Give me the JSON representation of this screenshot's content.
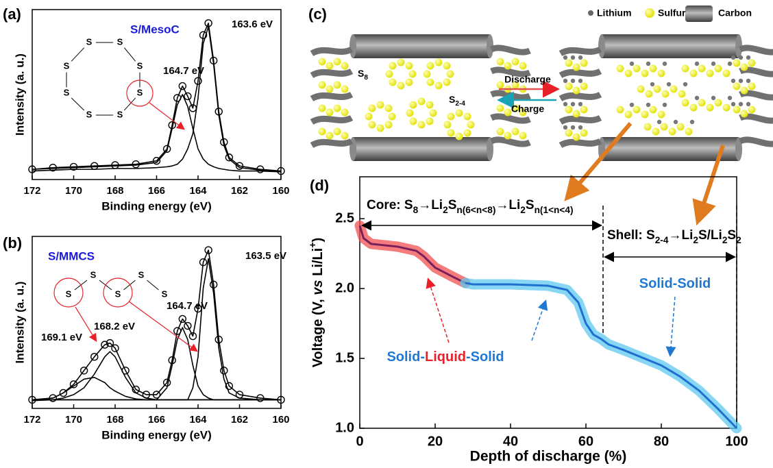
{
  "chart_data": [
    {
      "type": "spectrum",
      "panel": "(a)",
      "annotations": [
        {
          "text": "S/MesoC",
          "color": "#1a1adb"
        },
        {
          "text": "163.6 eV",
          "color": "#000000"
        },
        {
          "text": "164.7 eV",
          "color": "#000000"
        }
      ],
      "molecule_atoms": [
        "S",
        "S",
        "S",
        "S",
        "S",
        "S",
        "S",
        "S"
      ],
      "xlabel": "Binding energy (eV)",
      "ylabel": "Intensity (a. u.)",
      "xlim": [
        172,
        160
      ],
      "xticks": [
        172,
        170,
        168,
        166,
        164,
        162,
        160
      ],
      "ylim": [
        0,
        100
      ],
      "x": [
        172,
        171,
        170,
        169,
        168,
        167,
        166,
        165.5,
        165.25,
        165,
        164.75,
        164.5,
        164.25,
        164,
        163.75,
        163.5,
        163.25,
        163,
        162.75,
        162.5,
        162,
        161,
        160
      ],
      "series": [
        {
          "values": [
            6,
            7,
            7.5,
            8,
            8.5,
            9,
            11,
            18,
            32,
            48,
            55,
            49,
            42,
            58,
            85,
            92,
            70,
            40,
            22,
            13,
            8,
            6,
            5
          ],
          "marker": "circle",
          "line": true,
          "color": "#000000"
        },
        {
          "values": [
            6,
            6.5,
            7,
            7.5,
            8,
            8.5,
            10,
            17,
            30,
            44,
            50,
            43,
            30,
            18,
            12,
            9,
            7.5,
            6.5,
            6,
            5.5,
            5,
            5,
            4.5
          ],
          "line": true,
          "color": "#000000"
        },
        {
          "values": [
            5,
            5.5,
            6,
            6,
            6.5,
            6.5,
            7,
            7.5,
            8,
            9,
            12,
            18,
            27,
            48,
            80,
            90,
            68,
            38,
            20,
            12,
            7,
            5.5,
            4.5
          ],
          "line": true,
          "color": "#000000"
        }
      ]
    },
    {
      "type": "spectrum",
      "panel": "(b)",
      "annotations": [
        {
          "text": "S/MMCS",
          "color": "#1a1adb"
        },
        {
          "text": "169.1 eV",
          "color": "#000000"
        },
        {
          "text": "168.2 eV",
          "color": "#000000"
        },
        {
          "text": "164.7 eV",
          "color": "#000000"
        },
        {
          "text": "163.5 eV",
          "color": "#000000"
        }
      ],
      "molecule_atoms": [
        "S",
        "S",
        "S",
        "S",
        "S"
      ],
      "xlabel": "Binding energy (eV)",
      "ylabel": "Intensity (a. u.)",
      "xlim": [
        172,
        160
      ],
      "xticks": [
        172,
        170,
        168,
        166,
        164,
        162,
        160
      ],
      "ylim": [
        0,
        100
      ],
      "x": [
        172,
        171,
        170.5,
        170,
        169.5,
        169,
        168.5,
        168.25,
        168,
        167.5,
        167,
        166.5,
        166,
        165.5,
        165.25,
        165,
        164.75,
        164.5,
        164.25,
        164,
        163.75,
        163.5,
        163.25,
        163,
        162.75,
        162.5,
        162,
        161,
        160
      ],
      "series": [
        {
          "values": [
            5,
            6,
            9,
            14,
            22,
            30,
            37,
            38,
            35,
            22,
            11,
            8,
            8,
            15,
            28,
            45,
            52,
            48,
            42,
            58,
            85,
            92,
            72,
            40,
            22,
            13,
            8,
            6,
            5
          ],
          "marker": "circle",
          "line": true,
          "color": "#000000"
        },
        {
          "values": [
            5,
            6,
            9,
            13,
            17,
            18,
            15,
            12,
            10,
            7,
            5.5,
            5,
            5,
            5,
            5,
            5,
            5,
            5,
            5,
            5,
            5,
            5,
            5,
            5,
            5,
            5,
            5,
            5,
            5
          ],
          "line": true,
          "color": "#000000"
        },
        {
          "values": [
            4.5,
            5,
            6,
            8,
            12,
            20,
            30,
            33,
            30,
            18,
            9,
            6,
            5,
            5,
            5,
            5,
            5,
            5,
            5,
            5,
            5,
            5,
            5,
            5,
            5,
            5,
            5,
            5,
            5
          ],
          "line": true,
          "color": "#000000"
        },
        {
          "values": [
            5,
            5,
            5,
            5,
            5,
            5,
            5,
            5,
            5,
            5,
            5,
            5,
            5,
            12,
            25,
            40,
            47,
            40,
            25,
            13,
            8,
            6,
            5,
            5,
            5,
            5,
            5,
            5,
            5
          ],
          "line": true,
          "color": "#000000"
        },
        {
          "values": [
            5,
            5,
            5,
            5,
            5,
            5,
            5,
            5,
            5,
            5,
            5,
            5,
            5,
            5,
            5,
            5,
            5,
            5,
            12,
            30,
            70,
            87,
            67,
            35,
            17,
            9,
            6,
            5,
            5
          ],
          "line": true,
          "color": "#000000"
        }
      ]
    },
    {
      "type": "line",
      "panel": "(d)",
      "xlabel": "Depth of discharge (%)",
      "ylabel": {
        "parts": [
          {
            "t": "Voltage (V, "
          },
          {
            "t": "vs",
            "italic": true
          },
          {
            "t": " Li/Li"
          },
          {
            "t": "+",
            "sup": true
          },
          {
            "t": ")"
          }
        ]
      },
      "xlim": [
        0,
        100
      ],
      "xticks": [
        0,
        20,
        40,
        60,
        80,
        100
      ],
      "ylim": [
        1.0,
        2.8
      ],
      "yticks": [
        {
          "value": 1.0,
          "label": "1.0"
        },
        {
          "value": 1.5,
          "label": "1.5"
        },
        {
          "value": 2.0,
          "label": "2.0"
        },
        {
          "value": 2.5,
          "label": "2.5"
        }
      ],
      "series": [
        {
          "x": [
            0,
            1,
            3,
            10,
            15,
            17,
            20,
            25,
            28
          ],
          "values": [
            2.45,
            2.36,
            2.32,
            2.3,
            2.27,
            2.23,
            2.15,
            2.08,
            2.04
          ],
          "color": "#7a1f5c",
          "glow": "#f05050"
        },
        {
          "x": [
            28,
            30,
            40,
            50,
            55,
            58,
            60,
            62,
            64,
            66,
            70,
            80,
            85,
            90,
            95,
            100
          ],
          "values": [
            2.04,
            2.03,
            2.03,
            2.02,
            1.99,
            1.9,
            1.75,
            1.67,
            1.64,
            1.6,
            1.56,
            1.45,
            1.37,
            1.27,
            1.14,
            1.0
          ],
          "color": "#1f6fd1",
          "glow": "#5ec8f0"
        }
      ],
      "core_label": {
        "parts": [
          {
            "t": "Core: ",
            "bold": true
          },
          {
            "t": "S"
          },
          {
            "t": "8",
            "sub": true
          },
          {
            "t": "→Li"
          },
          {
            "t": "2",
            "sub": true
          },
          {
            "t": "S"
          },
          {
            "t": "n(6<n<8)",
            "sub": true
          },
          {
            "t": "→Li"
          },
          {
            "t": "2",
            "sub": true
          },
          {
            "t": "S"
          },
          {
            "t": "n(1<n<4)",
            "sub": true
          }
        ]
      },
      "shell_label": {
        "parts": [
          {
            "t": "Shell: ",
            "bold": true
          },
          {
            "t": "S"
          },
          {
            "t": "2-4",
            "sub": true
          },
          {
            "t": "→Li"
          },
          {
            "t": "2",
            "sub": true
          },
          {
            "t": "S/Li"
          },
          {
            "t": "2",
            "sub": true
          },
          {
            "t": "S"
          },
          {
            "t": "2",
            "sub": true
          }
        ]
      },
      "sls_label": {
        "parts": [
          {
            "t": "Solid",
            "color": "#1f78d1"
          },
          {
            "t": "-",
            "color": "#1f78d1"
          },
          {
            "t": "Liquid",
            "color": "#e8202a"
          },
          {
            "t": "-",
            "color": "#1f78d1"
          },
          {
            "t": "Solid",
            "color": "#1f78d1"
          }
        ]
      },
      "ss_label": {
        "parts": [
          {
            "t": "Solid-Solid",
            "color": "#1f78d1"
          }
        ]
      }
    }
  ],
  "diagram": {
    "panel": "(c)",
    "legend": [
      "Lithium",
      "Sulfur",
      "Carbon"
    ],
    "s8_label": {
      "parts": [
        {
          "t": "S"
        },
        {
          "t": "8",
          "sub": true
        }
      ]
    },
    "s24_label": {
      "parts": [
        {
          "t": "S"
        },
        {
          "t": "2-4",
          "sub": true
        }
      ]
    },
    "discharge": "Discharge",
    "charge": "Charge"
  }
}
